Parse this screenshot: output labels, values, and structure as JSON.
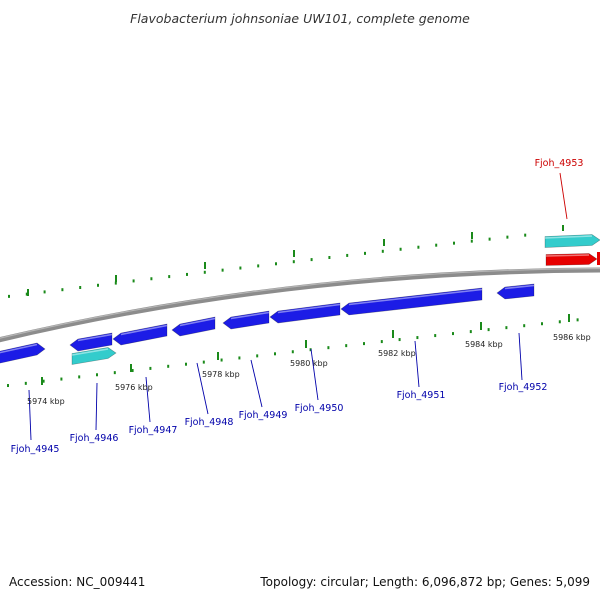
{
  "title": "Flavobacterium johnsoniae UW101, complete genome",
  "footer": {
    "accession": "Accession: NC_009441",
    "stats": "Topology: circular; Length: 6,096,872 bp; Genes: 5,099"
  },
  "colors": {
    "forward_gene": "#1c1ce6",
    "reverse_gene": "#1c1ce6",
    "rna": "#33cccc",
    "highlight_gene": "#e60000",
    "backbone": "#8c8c8c",
    "ticks": "#1a8a1a",
    "label_blue": "#0000aa",
    "label_red": "#cc0000"
  },
  "tick_labels": [
    "5974 kbp",
    "5976 kbp",
    "5978 kbp",
    "5980 kbp",
    "5982 kbp",
    "5984 kbp",
    "5986 kbp"
  ],
  "genes": [
    {
      "id": "Fjoh_4945",
      "track": "reverse-cds",
      "arrow": "right"
    },
    {
      "id": "Fjoh_4946",
      "track": "reverse-rna",
      "arrow": "right"
    },
    {
      "id": "Fjoh_4947",
      "track": "forward-cds",
      "arrow": "left"
    },
    {
      "id": "Fjoh_4948",
      "track": "forward-cds",
      "arrow": "left"
    },
    {
      "id": "Fjoh_4949",
      "track": "forward-cds",
      "arrow": "left"
    },
    {
      "id": "Fjoh_4950",
      "track": "forward-cds",
      "arrow": "left"
    },
    {
      "id": "Fjoh_4951",
      "track": "forward-cds",
      "arrow": "left"
    },
    {
      "id": "Fjoh_4952",
      "track": "forward-cds",
      "arrow": "left"
    },
    {
      "id": "Fjoh_4953",
      "track": "highlight",
      "arrow": "right"
    }
  ]
}
